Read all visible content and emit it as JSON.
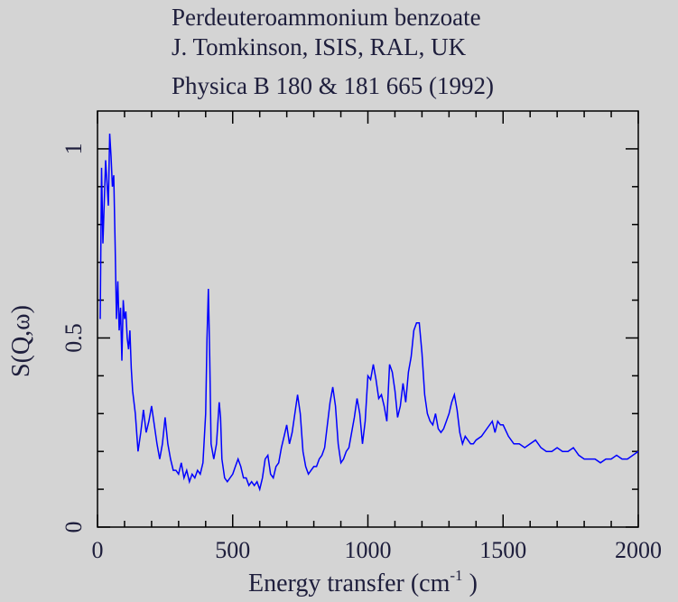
{
  "chart_data": {
    "type": "line",
    "title_lines": [
      "Perdeuteroammonium benzoate",
      "J. Tomkinson, ISIS, RAL, UK",
      "Physica B 180 & 181 665 (1992)"
    ],
    "x_label": {
      "text": "Energy transfer (cm",
      "sup": "-1",
      "end": " )"
    },
    "y_label": "S(Q,ω)",
    "xlim": [
      0,
      2000
    ],
    "ylim": [
      0,
      1.1
    ],
    "xticks": [
      0,
      500,
      1000,
      1500,
      2000
    ],
    "yticks": [
      0,
      0.5,
      1
    ],
    "xticks_minor": [
      100,
      200,
      300,
      400,
      600,
      700,
      800,
      900,
      1100,
      1200,
      1300,
      1400,
      1600,
      1700,
      1800,
      1900
    ],
    "yticks_minor": [
      0.1,
      0.2,
      0.3,
      0.4,
      0.6,
      0.7,
      0.8,
      0.9
    ],
    "series": [
      {
        "name": "S(Q,ω)",
        "color": "#0000ff",
        "x": [
          10,
          15,
          20,
          30,
          40,
          45,
          50,
          55,
          60,
          65,
          70,
          75,
          80,
          85,
          90,
          95,
          100,
          105,
          110,
          115,
          120,
          125,
          130,
          140,
          150,
          160,
          170,
          180,
          190,
          200,
          210,
          220,
          230,
          240,
          250,
          260,
          270,
          280,
          290,
          300,
          310,
          320,
          330,
          340,
          350,
          360,
          370,
          380,
          390,
          400,
          405,
          410,
          415,
          420,
          430,
          440,
          450,
          455,
          460,
          470,
          480,
          490,
          500,
          510,
          520,
          530,
          540,
          550,
          560,
          570,
          580,
          590,
          600,
          610,
          620,
          630,
          640,
          650,
          660,
          670,
          680,
          690,
          700,
          710,
          720,
          730,
          740,
          750,
          760,
          770,
          780,
          790,
          800,
          810,
          820,
          830,
          840,
          850,
          860,
          870,
          880,
          890,
          900,
          910,
          920,
          930,
          940,
          950,
          960,
          970,
          980,
          990,
          1000,
          1010,
          1020,
          1030,
          1040,
          1050,
          1060,
          1070,
          1080,
          1090,
          1100,
          1110,
          1120,
          1130,
          1140,
          1150,
          1160,
          1170,
          1180,
          1190,
          1200,
          1210,
          1220,
          1230,
          1240,
          1250,
          1260,
          1270,
          1280,
          1290,
          1300,
          1310,
          1320,
          1330,
          1340,
          1350,
          1360,
          1370,
          1380,
          1390,
          1400,
          1420,
          1440,
          1460,
          1470,
          1480,
          1490,
          1500,
          1520,
          1540,
          1560,
          1580,
          1600,
          1620,
          1640,
          1660,
          1680,
          1700,
          1720,
          1740,
          1760,
          1780,
          1800,
          1820,
          1840,
          1860,
          1880,
          1900,
          1920,
          1940,
          1960,
          1980,
          2000
        ],
        "values": [
          0.55,
          0.95,
          0.75,
          0.97,
          0.85,
          1.04,
          0.98,
          0.9,
          0.93,
          0.75,
          0.55,
          0.65,
          0.52,
          0.58,
          0.44,
          0.6,
          0.55,
          0.57,
          0.5,
          0.47,
          0.52,
          0.42,
          0.36,
          0.3,
          0.2,
          0.25,
          0.31,
          0.25,
          0.28,
          0.32,
          0.27,
          0.22,
          0.18,
          0.22,
          0.29,
          0.22,
          0.18,
          0.15,
          0.15,
          0.14,
          0.17,
          0.13,
          0.15,
          0.12,
          0.14,
          0.13,
          0.15,
          0.14,
          0.17,
          0.3,
          0.5,
          0.63,
          0.45,
          0.22,
          0.18,
          0.22,
          0.33,
          0.29,
          0.18,
          0.13,
          0.12,
          0.13,
          0.14,
          0.16,
          0.18,
          0.16,
          0.13,
          0.13,
          0.11,
          0.12,
          0.11,
          0.12,
          0.1,
          0.13,
          0.18,
          0.19,
          0.14,
          0.13,
          0.16,
          0.17,
          0.21,
          0.24,
          0.27,
          0.22,
          0.25,
          0.3,
          0.35,
          0.3,
          0.2,
          0.16,
          0.14,
          0.15,
          0.16,
          0.16,
          0.18,
          0.19,
          0.21,
          0.27,
          0.33,
          0.37,
          0.32,
          0.22,
          0.17,
          0.18,
          0.2,
          0.21,
          0.25,
          0.29,
          0.34,
          0.3,
          0.22,
          0.28,
          0.4,
          0.39,
          0.43,
          0.39,
          0.34,
          0.35,
          0.32,
          0.28,
          0.43,
          0.41,
          0.36,
          0.29,
          0.32,
          0.38,
          0.33,
          0.41,
          0.45,
          0.52,
          0.54,
          0.54,
          0.46,
          0.35,
          0.3,
          0.28,
          0.27,
          0.3,
          0.26,
          0.25,
          0.26,
          0.28,
          0.3,
          0.33,
          0.35,
          0.31,
          0.25,
          0.22,
          0.24,
          0.23,
          0.22,
          0.22,
          0.23,
          0.24,
          0.26,
          0.28,
          0.25,
          0.28,
          0.27,
          0.27,
          0.24,
          0.22,
          0.22,
          0.21,
          0.22,
          0.23,
          0.21,
          0.2,
          0.2,
          0.21,
          0.2,
          0.2,
          0.21,
          0.19,
          0.18,
          0.18,
          0.18,
          0.17,
          0.18,
          0.18,
          0.19,
          0.18,
          0.18,
          0.19,
          0.2
        ]
      }
    ]
  }
}
